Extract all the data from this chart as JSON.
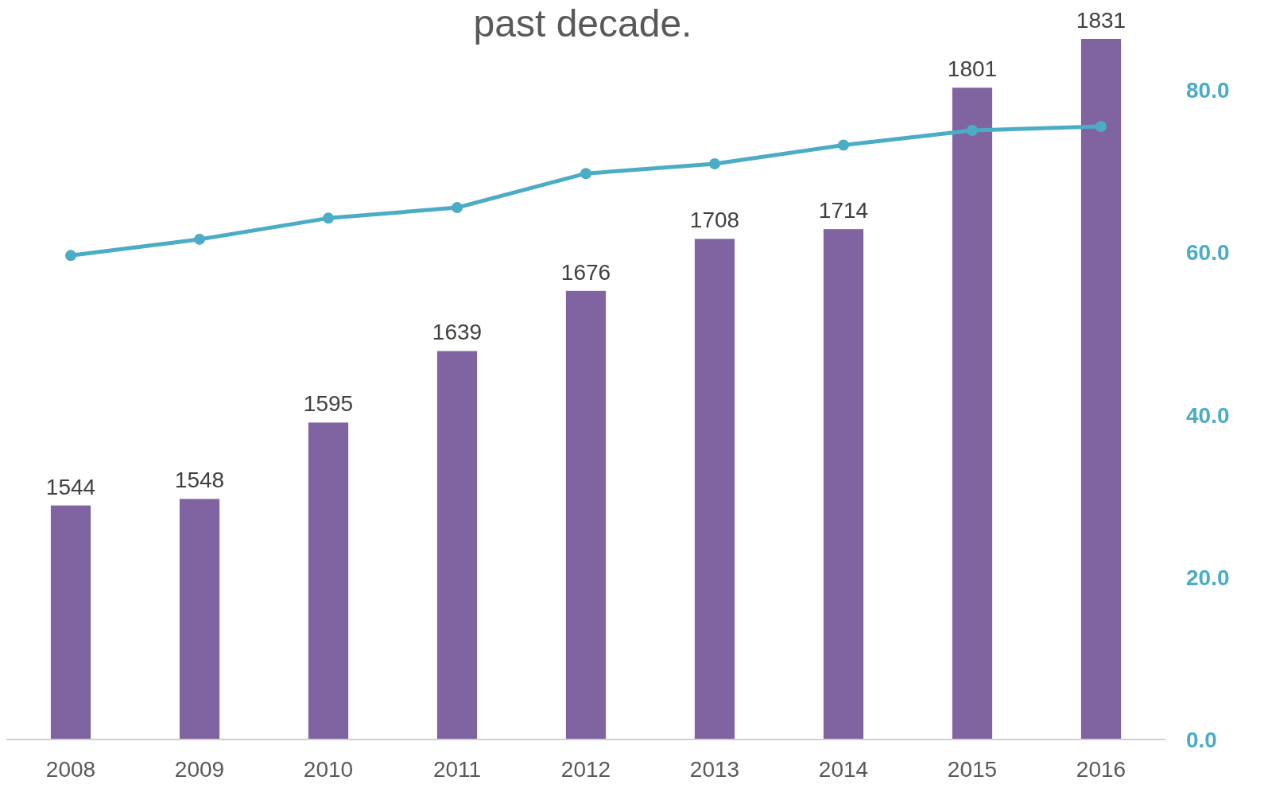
{
  "chart_data": {
    "type": "bar",
    "title": "past decade.",
    "categories": [
      "2008",
      "2009",
      "2010",
      "2011",
      "2012",
      "2013",
      "2014",
      "2015",
      "2016"
    ],
    "ylim": [
      1400,
      1831
    ],
    "y2lim": [
      0,
      80
    ],
    "y2ticks": [
      {
        "value": 0,
        "label": "0.0"
      },
      {
        "value": 20,
        "label": "20.0"
      },
      {
        "value": 40,
        "label": "40.0"
      },
      {
        "value": 60,
        "label": "60.0"
      },
      {
        "value": 80,
        "label": "80.0"
      }
    ],
    "grid": false,
    "marker": "circle",
    "series": [
      {
        "color": "#8064a2",
        "values": [
          1544,
          1548,
          1595,
          1639,
          1676,
          1708,
          1714,
          1801,
          1831
        ],
        "value_labels": [
          "1544",
          "1548",
          "1595",
          "1639",
          "1676",
          "1708",
          "1714",
          "1801",
          "1831"
        ]
      },
      {
        "type": "line",
        "axis": "y2",
        "color": "#4bacc6",
        "values": [
          59.6,
          61.6,
          64.2,
          65.5,
          69.7,
          70.9,
          73.2,
          75.0,
          75.5
        ]
      }
    ]
  }
}
